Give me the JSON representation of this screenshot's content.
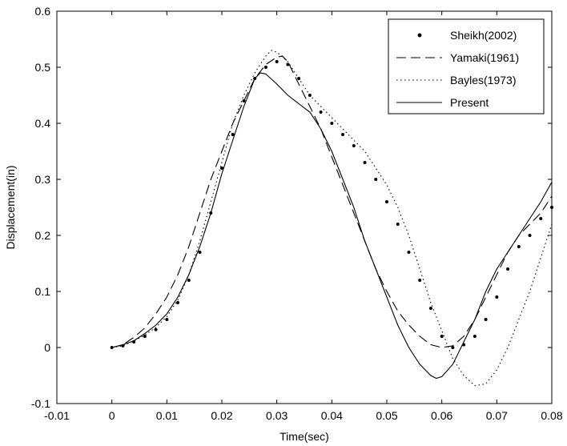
{
  "chart_data": {
    "type": "line",
    "title": "",
    "xlabel": "Time(sec)",
    "ylabel": "Displacement(in)",
    "xlim": [
      -0.01,
      0.08
    ],
    "ylim": [
      -0.1,
      0.6
    ],
    "xticks": [
      -0.01,
      0,
      0.01,
      0.02,
      0.03,
      0.04,
      0.05,
      0.06,
      0.07,
      0.08
    ],
    "xtick_labels": [
      "-0.01",
      "0",
      "0.01",
      "0.02",
      "0.03",
      "0.04",
      "0.05",
      "0.06",
      "0.07",
      "0.08"
    ],
    "yticks": [
      -0.1,
      0,
      0.1,
      0.2,
      0.3,
      0.4,
      0.5,
      0.6
    ],
    "ytick_labels": [
      "-0.1",
      "0",
      "0.1",
      "0.2",
      "0.3",
      "0.4",
      "0.5",
      "0.6"
    ],
    "grid": false,
    "legend_position": "top-right",
    "series": [
      {
        "name": "Sheikh(2002)",
        "style": "markers",
        "color": "#000000",
        "points": [
          [
            0,
            0
          ],
          [
            0.002,
            0.003
          ],
          [
            0.004,
            0.01
          ],
          [
            0.006,
            0.02
          ],
          [
            0.008,
            0.032
          ],
          [
            0.01,
            0.05
          ],
          [
            0.012,
            0.08
          ],
          [
            0.014,
            0.12
          ],
          [
            0.016,
            0.17
          ],
          [
            0.018,
            0.24
          ],
          [
            0.02,
            0.32
          ],
          [
            0.022,
            0.38
          ],
          [
            0.024,
            0.44
          ],
          [
            0.026,
            0.48
          ],
          [
            0.028,
            0.5
          ],
          [
            0.03,
            0.51
          ],
          [
            0.032,
            0.505
          ],
          [
            0.034,
            0.48
          ],
          [
            0.036,
            0.45
          ],
          [
            0.038,
            0.42
          ],
          [
            0.04,
            0.4
          ],
          [
            0.042,
            0.38
          ],
          [
            0.044,
            0.36
          ],
          [
            0.046,
            0.33
          ],
          [
            0.048,
            0.3
          ],
          [
            0.05,
            0.26
          ],
          [
            0.052,
            0.22
          ],
          [
            0.054,
            0.17
          ],
          [
            0.056,
            0.12
          ],
          [
            0.058,
            0.07
          ],
          [
            0.06,
            0.02
          ],
          [
            0.062,
            0.0
          ],
          [
            0.064,
            0.005
          ],
          [
            0.066,
            0.02
          ],
          [
            0.068,
            0.05
          ],
          [
            0.07,
            0.09
          ],
          [
            0.072,
            0.14
          ],
          [
            0.074,
            0.18
          ],
          [
            0.076,
            0.2
          ],
          [
            0.078,
            0.23
          ],
          [
            0.08,
            0.25
          ]
        ]
      },
      {
        "name": "Yamaki(1961)",
        "style": "dashed",
        "color": "#000000",
        "points": [
          [
            0,
            0
          ],
          [
            0.002,
            0.005
          ],
          [
            0.004,
            0.018
          ],
          [
            0.006,
            0.035
          ],
          [
            0.008,
            0.06
          ],
          [
            0.01,
            0.09
          ],
          [
            0.012,
            0.13
          ],
          [
            0.014,
            0.18
          ],
          [
            0.016,
            0.24
          ],
          [
            0.018,
            0.3
          ],
          [
            0.02,
            0.35
          ],
          [
            0.022,
            0.4
          ],
          [
            0.024,
            0.44
          ],
          [
            0.026,
            0.48
          ],
          [
            0.028,
            0.505
          ],
          [
            0.03,
            0.518
          ],
          [
            0.031,
            0.52
          ],
          [
            0.032,
            0.51
          ],
          [
            0.034,
            0.47
          ],
          [
            0.036,
            0.43
          ],
          [
            0.038,
            0.39
          ],
          [
            0.04,
            0.34
          ],
          [
            0.042,
            0.29
          ],
          [
            0.044,
            0.24
          ],
          [
            0.046,
            0.19
          ],
          [
            0.048,
            0.14
          ],
          [
            0.05,
            0.1
          ],
          [
            0.052,
            0.065
          ],
          [
            0.054,
            0.04
          ],
          [
            0.056,
            0.02
          ],
          [
            0.058,
            0.005
          ],
          [
            0.06,
            0.0
          ],
          [
            0.062,
            0.003
          ],
          [
            0.064,
            0.02
          ],
          [
            0.066,
            0.05
          ],
          [
            0.068,
            0.09
          ],
          [
            0.07,
            0.13
          ],
          [
            0.072,
            0.17
          ],
          [
            0.074,
            0.2
          ],
          [
            0.076,
            0.22
          ],
          [
            0.078,
            0.24
          ],
          [
            0.08,
            0.27
          ]
        ]
      },
      {
        "name": "Bayles(1973)",
        "style": "dotted",
        "color": "#000000",
        "points": [
          [
            0,
            0
          ],
          [
            0.002,
            0.003
          ],
          [
            0.004,
            0.012
          ],
          [
            0.006,
            0.022
          ],
          [
            0.008,
            0.036
          ],
          [
            0.01,
            0.055
          ],
          [
            0.012,
            0.085
          ],
          [
            0.014,
            0.13
          ],
          [
            0.016,
            0.19
          ],
          [
            0.018,
            0.26
          ],
          [
            0.02,
            0.33
          ],
          [
            0.022,
            0.4
          ],
          [
            0.024,
            0.45
          ],
          [
            0.026,
            0.49
          ],
          [
            0.028,
            0.52
          ],
          [
            0.029,
            0.53
          ],
          [
            0.03,
            0.527
          ],
          [
            0.032,
            0.51
          ],
          [
            0.034,
            0.48
          ],
          [
            0.036,
            0.45
          ],
          [
            0.038,
            0.43
          ],
          [
            0.04,
            0.41
          ],
          [
            0.042,
            0.39
          ],
          [
            0.044,
            0.37
          ],
          [
            0.046,
            0.35
          ],
          [
            0.048,
            0.32
          ],
          [
            0.05,
            0.29
          ],
          [
            0.052,
            0.25
          ],
          [
            0.054,
            0.2
          ],
          [
            0.056,
            0.14
          ],
          [
            0.058,
            0.08
          ],
          [
            0.06,
            0.03
          ],
          [
            0.062,
            -0.02
          ],
          [
            0.064,
            -0.05
          ],
          [
            0.066,
            -0.068
          ],
          [
            0.068,
            -0.065
          ],
          [
            0.07,
            -0.04
          ],
          [
            0.072,
            0.0
          ],
          [
            0.074,
            0.05
          ],
          [
            0.076,
            0.1
          ],
          [
            0.078,
            0.16
          ],
          [
            0.08,
            0.22
          ]
        ]
      },
      {
        "name": "Present",
        "style": "solid",
        "color": "#000000",
        "points": [
          [
            0,
            0
          ],
          [
            0.002,
            0.005
          ],
          [
            0.004,
            0.012
          ],
          [
            0.006,
            0.025
          ],
          [
            0.008,
            0.04
          ],
          [
            0.01,
            0.06
          ],
          [
            0.012,
            0.09
          ],
          [
            0.014,
            0.13
          ],
          [
            0.016,
            0.18
          ],
          [
            0.018,
            0.24
          ],
          [
            0.02,
            0.31
          ],
          [
            0.022,
            0.37
          ],
          [
            0.024,
            0.43
          ],
          [
            0.026,
            0.48
          ],
          [
            0.027,
            0.49
          ],
          [
            0.028,
            0.488
          ],
          [
            0.03,
            0.47
          ],
          [
            0.032,
            0.45
          ],
          [
            0.034,
            0.435
          ],
          [
            0.036,
            0.42
          ],
          [
            0.038,
            0.39
          ],
          [
            0.04,
            0.35
          ],
          [
            0.042,
            0.3
          ],
          [
            0.044,
            0.25
          ],
          [
            0.046,
            0.19
          ],
          [
            0.048,
            0.14
          ],
          [
            0.05,
            0.09
          ],
          [
            0.052,
            0.04
          ],
          [
            0.054,
            0.0
          ],
          [
            0.056,
            -0.03
          ],
          [
            0.058,
            -0.05
          ],
          [
            0.059,
            -0.055
          ],
          [
            0.06,
            -0.052
          ],
          [
            0.062,
            -0.03
          ],
          [
            0.064,
            0.01
          ],
          [
            0.066,
            0.05
          ],
          [
            0.068,
            0.1
          ],
          [
            0.07,
            0.14
          ],
          [
            0.072,
            0.17
          ],
          [
            0.074,
            0.2
          ],
          [
            0.076,
            0.23
          ],
          [
            0.078,
            0.26
          ],
          [
            0.08,
            0.295
          ]
        ]
      }
    ]
  }
}
